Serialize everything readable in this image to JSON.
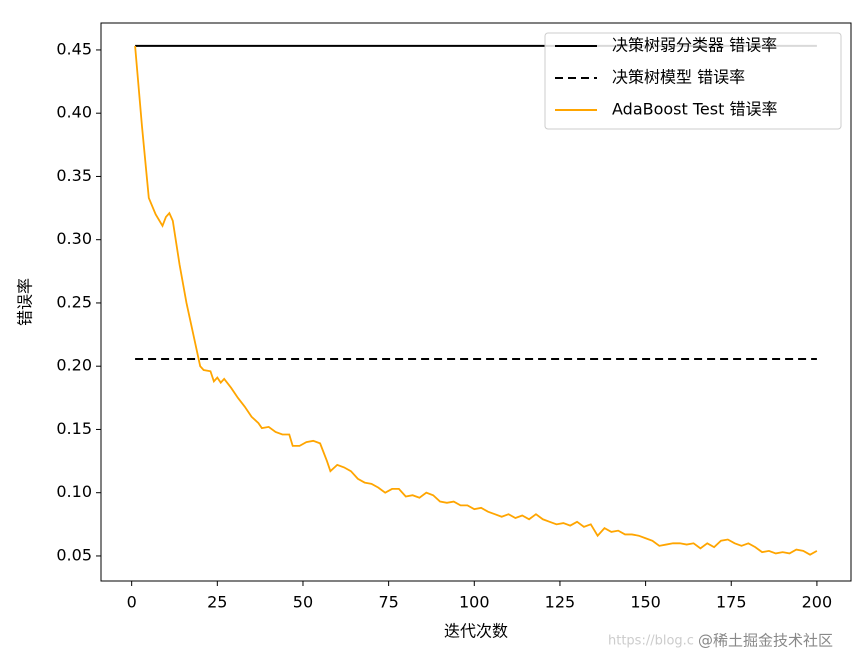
{
  "chart_data": {
    "type": "line",
    "xlabel": "迭代次数",
    "ylabel": "错误率",
    "xlim": [
      -8.95,
      209.95
    ],
    "ylim": [
      0.0302,
      0.4713
    ],
    "xticks": [
      0,
      25,
      50,
      75,
      100,
      125,
      150,
      175,
      200
    ],
    "yticks": [
      0.05,
      {
        "value": 0.1,
        "label": "0.10"
      },
      0.15,
      {
        "value": 0.2,
        "label": "0.20"
      },
      0.25,
      {
        "value": 0.3,
        "label": "0.30"
      },
      0.35,
      {
        "value": 0.4,
        "label": "0.40"
      },
      0.45
    ],
    "legend": "upper right",
    "watermark": [
      "https://blog.c",
      "@稀土掘金技术社区"
    ],
    "series": [
      {
        "name": "决策树弱分类器 错误率",
        "color": "#000000",
        "style": "solid",
        "x": [
          1,
          200
        ],
        "values": [
          0.4532,
          0.4532
        ]
      },
      {
        "name": "决策树模型 错误率",
        "color": "#000000",
        "style": "dashed",
        "x": [
          1,
          200
        ],
        "values": [
          0.2057,
          0.2057
        ]
      },
      {
        "name": "AdaBoost Test 错误率",
        "color": "#ffa500",
        "style": "solid",
        "x": [
          1,
          3,
          5,
          7,
          9,
          10,
          11,
          12,
          14,
          16,
          18,
          20,
          21,
          23,
          24,
          25,
          26,
          27,
          29,
          31,
          33,
          35,
          37,
          38,
          40,
          42,
          44,
          46,
          47,
          49,
          51,
          53,
          55,
          57,
          58,
          60,
          62,
          64,
          66,
          68,
          70,
          72,
          74,
          76,
          78,
          80,
          82,
          84,
          86,
          88,
          90,
          92,
          94,
          96,
          98,
          100,
          102,
          104,
          106,
          108,
          110,
          112,
          114,
          116,
          118,
          120,
          122,
          124,
          126,
          128,
          130,
          132,
          134,
          136,
          138,
          140,
          142,
          144,
          146,
          148,
          150,
          152,
          154,
          156,
          158,
          160,
          162,
          164,
          166,
          168,
          170,
          172,
          174,
          176,
          178,
          180,
          182,
          184,
          186,
          188,
          190,
          192,
          194,
          196,
          198,
          200
        ],
        "values": [
          0.4532,
          0.39,
          0.333,
          0.32,
          0.311,
          0.318,
          0.321,
          0.315,
          0.28,
          0.25,
          0.225,
          0.2,
          0.197,
          0.196,
          0.188,
          0.191,
          0.187,
          0.19,
          0.183,
          0.175,
          0.168,
          0.16,
          0.155,
          0.151,
          0.152,
          0.148,
          0.146,
          0.146,
          0.137,
          0.137,
          0.14,
          0.141,
          0.139,
          0.125,
          0.117,
          0.122,
          0.12,
          0.117,
          0.111,
          0.108,
          0.107,
          0.104,
          0.1,
          0.103,
          0.103,
          0.097,
          0.098,
          0.096,
          0.1,
          0.098,
          0.093,
          0.092,
          0.093,
          0.09,
          0.09,
          0.087,
          0.088,
          0.085,
          0.083,
          0.081,
          0.083,
          0.08,
          0.082,
          0.079,
          0.083,
          0.079,
          0.077,
          0.075,
          0.076,
          0.074,
          0.077,
          0.073,
          0.075,
          0.066,
          0.072,
          0.069,
          0.07,
          0.067,
          0.067,
          0.066,
          0.064,
          0.062,
          0.058,
          0.059,
          0.06,
          0.06,
          0.059,
          0.06,
          0.056,
          0.06,
          0.057,
          0.062,
          0.063,
          0.06,
          0.058,
          0.06,
          0.057,
          0.053,
          0.054,
          0.052,
          0.053,
          0.052,
          0.055,
          0.054,
          0.051,
          0.054
        ]
      }
    ]
  }
}
